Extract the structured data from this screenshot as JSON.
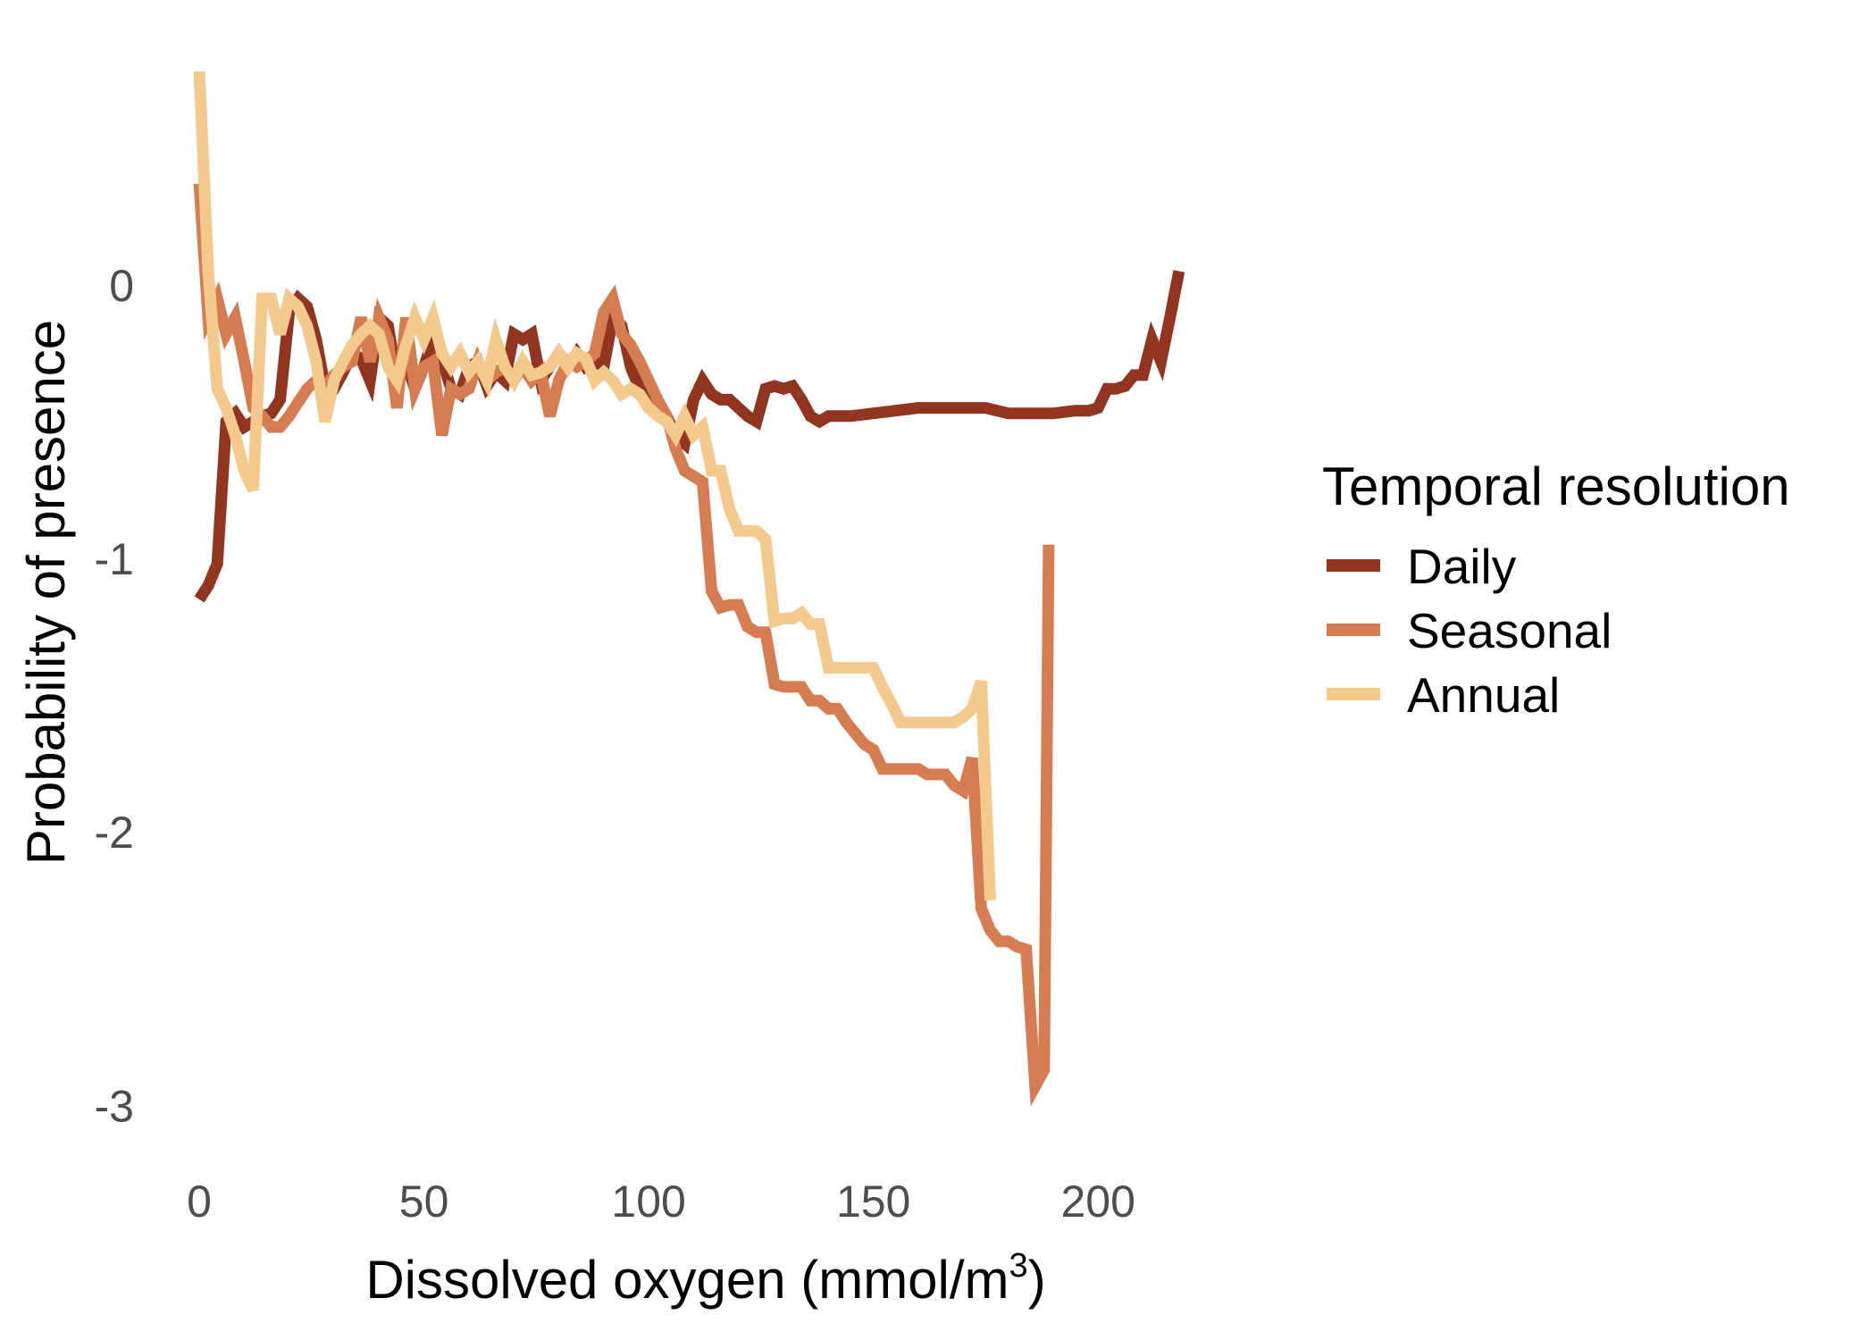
{
  "chart_data": {
    "type": "line",
    "xlabel_main": "Dissolved oxygen (mmol/m",
    "xlabel_sup": "3",
    "xlabel_close": ")",
    "ylabel": "Probability of presence",
    "xlim": [
      -2,
      226
    ],
    "ylim": [
      -3.1,
      0.78
    ],
    "x_ticks": [
      0,
      50,
      100,
      150,
      200
    ],
    "x_tick_labels": [
      "0",
      "50",
      "100",
      "150",
      "200"
    ],
    "y_ticks": [
      0,
      -1,
      -2,
      -3
    ],
    "y_tick_labels": [
      "0",
      "-1",
      "-2",
      "-3"
    ],
    "grid": false,
    "legend": {
      "title": "Temporal resolution",
      "position": "right"
    },
    "series": [
      {
        "name": "Daily",
        "color": "#923520",
        "points": [
          [
            0,
            -1.15
          ],
          [
            2,
            -1.1
          ],
          [
            4,
            -1.02
          ],
          [
            6,
            -0.5
          ],
          [
            8,
            -0.47
          ],
          [
            10,
            -0.52
          ],
          [
            12,
            -0.5
          ],
          [
            14,
            -0.48
          ],
          [
            16,
            -0.47
          ],
          [
            18,
            -0.42
          ],
          [
            20,
            -0.1
          ],
          [
            22,
            -0.05
          ],
          [
            24,
            -0.08
          ],
          [
            26,
            -0.2
          ],
          [
            28,
            -0.38
          ],
          [
            30,
            -0.38
          ],
          [
            32,
            -0.32
          ],
          [
            34,
            -0.25
          ],
          [
            36,
            -0.27
          ],
          [
            38,
            -0.35
          ],
          [
            40,
            -0.12
          ],
          [
            42,
            -0.15
          ],
          [
            44,
            -0.35
          ],
          [
            46,
            -0.28
          ],
          [
            48,
            -0.38
          ],
          [
            50,
            -0.3
          ],
          [
            52,
            -0.2
          ],
          [
            54,
            -0.27
          ],
          [
            56,
            -0.38
          ],
          [
            58,
            -0.4
          ],
          [
            60,
            -0.3
          ],
          [
            62,
            -0.28
          ],
          [
            64,
            -0.37
          ],
          [
            66,
            -0.32
          ],
          [
            68,
            -0.35
          ],
          [
            70,
            -0.18
          ],
          [
            72,
            -0.2
          ],
          [
            74,
            -0.18
          ],
          [
            76,
            -0.35
          ],
          [
            78,
            -0.3
          ],
          [
            80,
            -0.25
          ],
          [
            82,
            -0.3
          ],
          [
            84,
            -0.25
          ],
          [
            86,
            -0.3
          ],
          [
            88,
            -0.28
          ],
          [
            90,
            -0.3
          ],
          [
            92,
            -0.12
          ],
          [
            94,
            -0.15
          ],
          [
            96,
            -0.3
          ],
          [
            98,
            -0.38
          ],
          [
            100,
            -0.42
          ],
          [
            102,
            -0.45
          ],
          [
            104,
            -0.48
          ],
          [
            106,
            -0.55
          ],
          [
            108,
            -0.58
          ],
          [
            110,
            -0.42
          ],
          [
            112,
            -0.35
          ],
          [
            114,
            -0.4
          ],
          [
            116,
            -0.42
          ],
          [
            118,
            -0.42
          ],
          [
            120,
            -0.45
          ],
          [
            122,
            -0.48
          ],
          [
            124,
            -0.5
          ],
          [
            126,
            -0.38
          ],
          [
            128,
            -0.37
          ],
          [
            130,
            -0.38
          ],
          [
            132,
            -0.37
          ],
          [
            134,
            -0.42
          ],
          [
            136,
            -0.48
          ],
          [
            138,
            -0.5
          ],
          [
            140,
            -0.48
          ],
          [
            145,
            -0.48
          ],
          [
            150,
            -0.47
          ],
          [
            155,
            -0.46
          ],
          [
            160,
            -0.45
          ],
          [
            170,
            -0.45
          ],
          [
            175,
            -0.45
          ],
          [
            180,
            -0.47
          ],
          [
            190,
            -0.47
          ],
          [
            195,
            -0.46
          ],
          [
            198,
            -0.46
          ],
          [
            200,
            -0.45
          ],
          [
            202,
            -0.38
          ],
          [
            204,
            -0.38
          ],
          [
            206,
            -0.37
          ],
          [
            208,
            -0.33
          ],
          [
            210,
            -0.33
          ],
          [
            212,
            -0.2
          ],
          [
            214,
            -0.28
          ],
          [
            216,
            -0.12
          ],
          [
            218,
            0.05
          ]
        ]
      },
      {
        "name": "Seasonal",
        "color": "#D67C52",
        "points": [
          [
            0,
            0.37
          ],
          [
            2,
            -0.12
          ],
          [
            4,
            -0.05
          ],
          [
            6,
            -0.18
          ],
          [
            8,
            -0.12
          ],
          [
            10,
            -0.28
          ],
          [
            12,
            -0.45
          ],
          [
            14,
            -0.48
          ],
          [
            16,
            -0.52
          ],
          [
            18,
            -0.52
          ],
          [
            20,
            -0.48
          ],
          [
            22,
            -0.43
          ],
          [
            24,
            -0.38
          ],
          [
            26,
            -0.35
          ],
          [
            28,
            -0.37
          ],
          [
            30,
            -0.33
          ],
          [
            32,
            -0.3
          ],
          [
            34,
            -0.28
          ],
          [
            36,
            -0.12
          ],
          [
            38,
            -0.28
          ],
          [
            40,
            -0.12
          ],
          [
            42,
            -0.2
          ],
          [
            44,
            -0.45
          ],
          [
            46,
            -0.12
          ],
          [
            48,
            -0.38
          ],
          [
            50,
            -0.3
          ],
          [
            52,
            -0.28
          ],
          [
            54,
            -0.55
          ],
          [
            56,
            -0.38
          ],
          [
            58,
            -0.4
          ],
          [
            60,
            -0.38
          ],
          [
            62,
            -0.28
          ],
          [
            64,
            -0.35
          ],
          [
            66,
            -0.32
          ],
          [
            68,
            -0.3
          ],
          [
            70,
            -0.35
          ],
          [
            72,
            -0.3
          ],
          [
            74,
            -0.35
          ],
          [
            76,
            -0.32
          ],
          [
            78,
            -0.48
          ],
          [
            80,
            -0.35
          ],
          [
            82,
            -0.28
          ],
          [
            84,
            -0.3
          ],
          [
            86,
            -0.28
          ],
          [
            88,
            -0.25
          ],
          [
            90,
            -0.1
          ],
          [
            92,
            -0.05
          ],
          [
            94,
            -0.18
          ],
          [
            96,
            -0.22
          ],
          [
            98,
            -0.28
          ],
          [
            100,
            -0.35
          ],
          [
            102,
            -0.42
          ],
          [
            104,
            -0.48
          ],
          [
            106,
            -0.6
          ],
          [
            108,
            -0.68
          ],
          [
            110,
            -0.7
          ],
          [
            112,
            -0.72
          ],
          [
            114,
            -1.12
          ],
          [
            116,
            -1.18
          ],
          [
            118,
            -1.17
          ],
          [
            120,
            -1.17
          ],
          [
            122,
            -1.25
          ],
          [
            124,
            -1.27
          ],
          [
            126,
            -1.27
          ],
          [
            128,
            -1.46
          ],
          [
            130,
            -1.47
          ],
          [
            134,
            -1.47
          ],
          [
            136,
            -1.52
          ],
          [
            138,
            -1.52
          ],
          [
            140,
            -1.55
          ],
          [
            142,
            -1.55
          ],
          [
            144,
            -1.6
          ],
          [
            146,
            -1.64
          ],
          [
            148,
            -1.68
          ],
          [
            150,
            -1.7
          ],
          [
            152,
            -1.77
          ],
          [
            160,
            -1.77
          ],
          [
            162,
            -1.79
          ],
          [
            166,
            -1.79
          ],
          [
            168,
            -1.83
          ],
          [
            170,
            -1.85
          ],
          [
            172,
            -1.73
          ],
          [
            174,
            -2.28
          ],
          [
            176,
            -2.36
          ],
          [
            178,
            -2.4
          ],
          [
            180,
            -2.4
          ],
          [
            182,
            -2.42
          ],
          [
            184,
            -2.43
          ],
          [
            186,
            -2.93
          ],
          [
            188,
            -2.87
          ],
          [
            189,
            -0.95
          ]
        ]
      },
      {
        "name": "Annual",
        "color": "#F4C98D",
        "points": [
          [
            0,
            0.78
          ],
          [
            2,
            0.05
          ],
          [
            4,
            -0.38
          ],
          [
            6,
            -0.45
          ],
          [
            8,
            -0.55
          ],
          [
            10,
            -0.68
          ],
          [
            12,
            -0.75
          ],
          [
            14,
            -0.05
          ],
          [
            16,
            -0.05
          ],
          [
            18,
            -0.18
          ],
          [
            20,
            -0.05
          ],
          [
            22,
            -0.08
          ],
          [
            24,
            -0.15
          ],
          [
            26,
            -0.28
          ],
          [
            28,
            -0.5
          ],
          [
            30,
            -0.35
          ],
          [
            32,
            -0.28
          ],
          [
            34,
            -0.22
          ],
          [
            36,
            -0.18
          ],
          [
            38,
            -0.15
          ],
          [
            40,
            -0.18
          ],
          [
            42,
            -0.3
          ],
          [
            44,
            -0.35
          ],
          [
            46,
            -0.22
          ],
          [
            48,
            -0.12
          ],
          [
            50,
            -0.2
          ],
          [
            52,
            -0.12
          ],
          [
            54,
            -0.25
          ],
          [
            56,
            -0.3
          ],
          [
            58,
            -0.25
          ],
          [
            60,
            -0.32
          ],
          [
            62,
            -0.28
          ],
          [
            64,
            -0.35
          ],
          [
            66,
            -0.2
          ],
          [
            68,
            -0.3
          ],
          [
            70,
            -0.35
          ],
          [
            72,
            -0.28
          ],
          [
            74,
            -0.33
          ],
          [
            76,
            -0.32
          ],
          [
            78,
            -0.3
          ],
          [
            80,
            -0.25
          ],
          [
            82,
            -0.3
          ],
          [
            84,
            -0.25
          ],
          [
            86,
            -0.27
          ],
          [
            88,
            -0.35
          ],
          [
            90,
            -0.32
          ],
          [
            92,
            -0.35
          ],
          [
            94,
            -0.4
          ],
          [
            96,
            -0.38
          ],
          [
            98,
            -0.4
          ],
          [
            100,
            -0.45
          ],
          [
            102,
            -0.48
          ],
          [
            104,
            -0.5
          ],
          [
            106,
            -0.55
          ],
          [
            108,
            -0.48
          ],
          [
            110,
            -0.55
          ],
          [
            112,
            -0.52
          ],
          [
            114,
            -0.68
          ],
          [
            116,
            -0.68
          ],
          [
            118,
            -0.82
          ],
          [
            120,
            -0.9
          ],
          [
            122,
            -0.9
          ],
          [
            124,
            -0.9
          ],
          [
            126,
            -0.93
          ],
          [
            128,
            -1.23
          ],
          [
            130,
            -1.22
          ],
          [
            132,
            -1.22
          ],
          [
            134,
            -1.2
          ],
          [
            136,
            -1.24
          ],
          [
            138,
            -1.24
          ],
          [
            140,
            -1.4
          ],
          [
            142,
            -1.4
          ],
          [
            144,
            -1.4
          ],
          [
            146,
            -1.4
          ],
          [
            148,
            -1.4
          ],
          [
            150,
            -1.4
          ],
          [
            152,
            -1.47
          ],
          [
            154,
            -1.53
          ],
          [
            156,
            -1.6
          ],
          [
            158,
            -1.6
          ],
          [
            160,
            -1.6
          ],
          [
            162,
            -1.6
          ],
          [
            164,
            -1.6
          ],
          [
            166,
            -1.6
          ],
          [
            168,
            -1.6
          ],
          [
            170,
            -1.58
          ],
          [
            172,
            -1.55
          ],
          [
            174,
            -1.45
          ],
          [
            176,
            -2.25
          ]
        ]
      }
    ]
  }
}
